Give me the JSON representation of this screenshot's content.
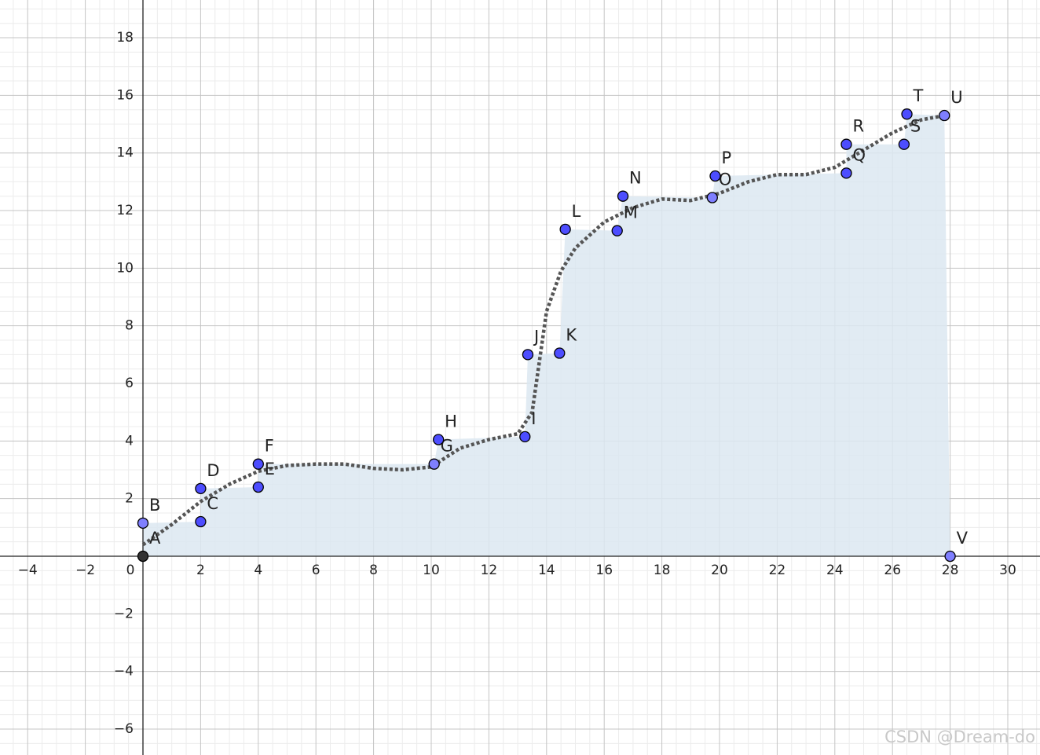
{
  "chart_data": {
    "type": "scatter",
    "points": [
      {
        "name": "A",
        "x": 0,
        "y": 0,
        "color": "#333333"
      },
      {
        "name": "B",
        "x": 0,
        "y": 1.15,
        "color": "#7f7fff"
      },
      {
        "name": "C",
        "x": 2,
        "y": 1.2,
        "color": "#4d4dff"
      },
      {
        "name": "D",
        "x": 2,
        "y": 2.35,
        "color": "#4d4dff"
      },
      {
        "name": "E",
        "x": 4,
        "y": 2.4,
        "color": "#4d4dff"
      },
      {
        "name": "F",
        "x": 4,
        "y": 3.2,
        "color": "#4d4dff"
      },
      {
        "name": "G",
        "x": 10.1,
        "y": 3.2,
        "color": "#7f7fff"
      },
      {
        "name": "H",
        "x": 10.25,
        "y": 4.05,
        "color": "#4d4dff"
      },
      {
        "name": "I",
        "x": 13.25,
        "y": 4.15,
        "color": "#4d4dff"
      },
      {
        "name": "J",
        "x": 13.35,
        "y": 7,
        "color": "#4d4dff"
      },
      {
        "name": "K",
        "x": 14.45,
        "y": 7.05,
        "color": "#4d4dff"
      },
      {
        "name": "L",
        "x": 14.65,
        "y": 11.35,
        "color": "#4d4dff"
      },
      {
        "name": "M",
        "x": 16.45,
        "y": 11.3,
        "color": "#4d4dff"
      },
      {
        "name": "N",
        "x": 16.65,
        "y": 12.5,
        "color": "#4d4dff"
      },
      {
        "name": "O",
        "x": 19.75,
        "y": 12.45,
        "color": "#7f7fff"
      },
      {
        "name": "P",
        "x": 19.85,
        "y": 13.2,
        "color": "#4d4dff"
      },
      {
        "name": "Q",
        "x": 24.4,
        "y": 13.3,
        "color": "#4d4dff"
      },
      {
        "name": "R",
        "x": 24.4,
        "y": 14.3,
        "color": "#4d4dff"
      },
      {
        "name": "S",
        "x": 26.4,
        "y": 14.3,
        "color": "#4d4dff"
      },
      {
        "name": "T",
        "x": 26.5,
        "y": 15.35,
        "color": "#4d4dff"
      },
      {
        "name": "U",
        "x": 27.8,
        "y": 15.3,
        "color": "#7f7fff"
      },
      {
        "name": "V",
        "x": 28,
        "y": 0,
        "color": "#7f7fff"
      }
    ],
    "curve": {
      "color": "#555555",
      "x": [
        0,
        1,
        2,
        3,
        4,
        5,
        6,
        7,
        8,
        9,
        10,
        11,
        12,
        13,
        13.5,
        14,
        14.5,
        15,
        16,
        17,
        18,
        19,
        20,
        21,
        22,
        23,
        24,
        25,
        26,
        27,
        27.8
      ],
      "y": [
        0.4,
        1.1,
        1.9,
        2.5,
        2.95,
        3.15,
        3.2,
        3.2,
        3.05,
        3.0,
        3.1,
        3.75,
        4.05,
        4.25,
        5,
        8.5,
        9.9,
        10.7,
        11.6,
        12.1,
        12.4,
        12.35,
        12.6,
        13,
        13.25,
        13.25,
        13.5,
        14.1,
        14.7,
        15.15,
        15.3
      ]
    },
    "fill_color": "#dce7f1",
    "xlim": [
      -4.959,
      31.117
    ],
    "ylim": [
      -6.9,
      19.31
    ],
    "xticks": [
      {
        "value": -4,
        "label": "−4"
      },
      {
        "value": -2,
        "label": "−2"
      },
      0,
      2,
      4,
      6,
      8,
      10,
      12,
      14,
      16,
      18,
      20,
      22,
      24,
      26,
      28,
      30
    ],
    "yticks": [
      {
        "value": -6,
        "label": "−6"
      },
      {
        "value": -4,
        "label": "−4"
      },
      {
        "value": -2,
        "label": "−2"
      },
      2,
      4,
      6,
      8,
      10,
      12,
      14,
      16,
      18
    ],
    "grid": true
  },
  "watermark": "CSDN @Dream-do"
}
